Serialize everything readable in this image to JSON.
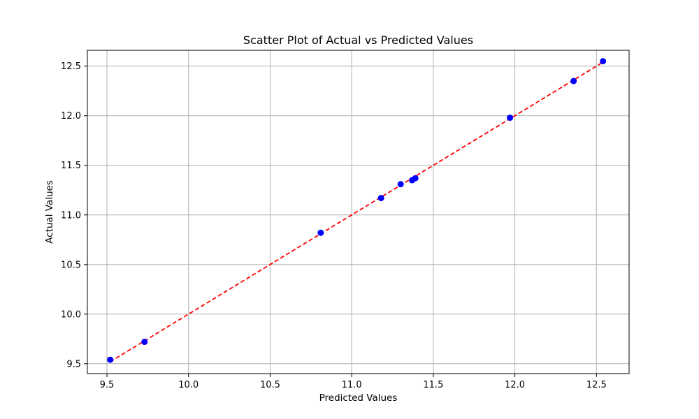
{
  "chart_data": {
    "type": "scatter",
    "title": "Scatter Plot of Actual vs Predicted Values",
    "xlabel": "Predicted Values",
    "ylabel": "Actual Values",
    "xlim": [
      9.38,
      12.7
    ],
    "ylim": [
      9.4,
      12.66
    ],
    "x_ticks": [
      "9.5",
      "10.0",
      "10.5",
      "11.0",
      "11.5",
      "12.0",
      "12.5"
    ],
    "y_ticks": [
      "9.5",
      "10.0",
      "10.5",
      "11.0",
      "11.5",
      "12.0",
      "12.5"
    ],
    "grid": true,
    "point_color": "#0000ff",
    "line_color": "#ff0000",
    "points": [
      {
        "x": 9.52,
        "y": 9.54
      },
      {
        "x": 9.73,
        "y": 9.72
      },
      {
        "x": 10.81,
        "y": 10.82
      },
      {
        "x": 11.18,
        "y": 11.17
      },
      {
        "x": 11.3,
        "y": 11.31
      },
      {
        "x": 11.37,
        "y": 11.35
      },
      {
        "x": 11.39,
        "y": 11.37
      },
      {
        "x": 11.97,
        "y": 11.98
      },
      {
        "x": 12.36,
        "y": 12.35
      },
      {
        "x": 12.54,
        "y": 12.55
      }
    ],
    "reference_line": {
      "style": "dashed",
      "from": [
        9.52,
        9.52
      ],
      "to": [
        12.54,
        12.54
      ]
    }
  }
}
